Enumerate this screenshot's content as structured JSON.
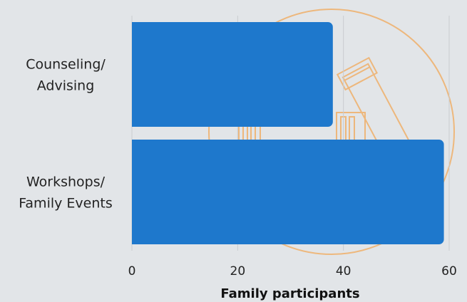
{
  "chart_data": {
    "type": "bar",
    "orientation": "horizontal",
    "categories": [
      [
        "Counseling/",
        "Advising"
      ],
      [
        "Workshops/",
        "Family Events"
      ]
    ],
    "values": [
      38,
      59
    ],
    "xlabel": "Family participants",
    "ylabel": "",
    "xlim": [
      0,
      60
    ],
    "xticks": [
      "0",
      "20",
      "40",
      "60"
    ],
    "grid": "vertical",
    "bar_color": "#1e78cc",
    "grid_color": "#c9cdd1",
    "background_color": "#e2e5e8",
    "decoration": {
      "icon": "graduation-diploma-watermark-icon",
      "color": "#f0b06a"
    }
  }
}
